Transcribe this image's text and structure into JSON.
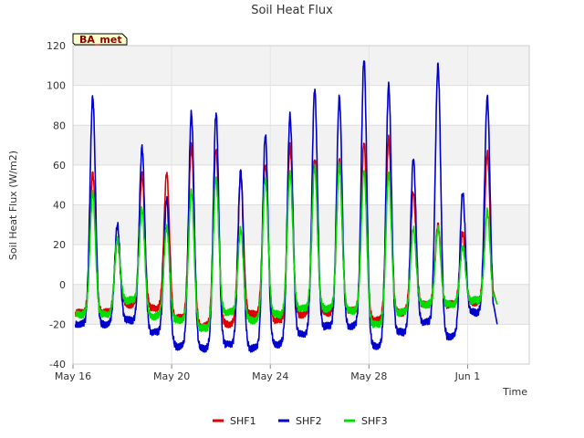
{
  "chart_data": {
    "type": "line",
    "title": "Soil Heat Flux",
    "xlabel": "Time",
    "ylabel": "Soil Heat Flux (W/m2)",
    "ylim": [
      -40,
      120
    ],
    "yticks": [
      -40,
      -20,
      0,
      20,
      40,
      60,
      80,
      100,
      120
    ],
    "xlim_days": [
      0,
      18.5
    ],
    "xticks": [
      {
        "day": 0,
        "label": "May 16"
      },
      {
        "day": 4,
        "label": "May 20"
      },
      {
        "day": 8,
        "label": "May 24"
      },
      {
        "day": 12,
        "label": "May 28"
      },
      {
        "day": 16,
        "label": "Jun 1"
      }
    ],
    "grid": true,
    "legend_position": "bottom-center",
    "station_label": "BA_met",
    "series": [
      {
        "name": "SHF1",
        "color": "#dd0000",
        "daily_peak_day": [
          0.8,
          1.8,
          2.8,
          3.8,
          4.8,
          5.8,
          6.8,
          7.8,
          8.8,
          9.8,
          10.8,
          11.8,
          12.8,
          13.8,
          14.8,
          15.8,
          16.8
        ],
        "daily_peaks": [
          56,
          22,
          55,
          56,
          70,
          68,
          55,
          60,
          70,
          63,
          62,
          71,
          73,
          46,
          30,
          26,
          66
        ],
        "daily_mins": [
          -14,
          -10,
          -12,
          -17,
          -21,
          -20,
          -15,
          -18,
          -15,
          -14,
          -13,
          -18,
          -14,
          -10,
          -10,
          -9,
          -10
        ],
        "end_value": -10
      },
      {
        "name": "SHF2",
        "color": "#0000cc",
        "daily_peak_day": [
          0.8,
          1.8,
          2.8,
          3.8,
          4.8,
          5.8,
          6.8,
          7.8,
          8.8,
          9.8,
          10.8,
          11.8,
          12.8,
          13.8,
          14.8,
          15.8,
          16.8
        ],
        "daily_peaks": [
          94,
          30,
          69,
          43,
          86,
          86,
          57,
          75,
          85,
          98,
          94,
          113,
          100,
          63,
          110,
          46,
          94
        ],
        "daily_mins": [
          -20,
          -18,
          -24,
          -31,
          -32,
          -30,
          -32,
          -30,
          -25,
          -21,
          -21,
          -31,
          -24,
          -19,
          -26,
          -14,
          -20
        ],
        "end_value": -20
      },
      {
        "name": "SHF3",
        "color": "#00dd00",
        "daily_peak_day": [
          0.8,
          1.8,
          2.8,
          3.8,
          4.8,
          5.8,
          6.8,
          7.8,
          8.8,
          9.8,
          10.8,
          11.8,
          12.8,
          13.8,
          14.8,
          15.8,
          16.8
        ],
        "daily_peaks": [
          46,
          23,
          38,
          29,
          47,
          53,
          28,
          53,
          56,
          59,
          60,
          57,
          56,
          28,
          28,
          19,
          37
        ],
        "daily_mins": [
          -15,
          -8,
          -16,
          -18,
          -22,
          -14,
          -18,
          -15,
          -12,
          -12,
          -13,
          -20,
          -14,
          -10,
          -10,
          -8,
          -10
        ],
        "end_value": -10
      }
    ]
  }
}
